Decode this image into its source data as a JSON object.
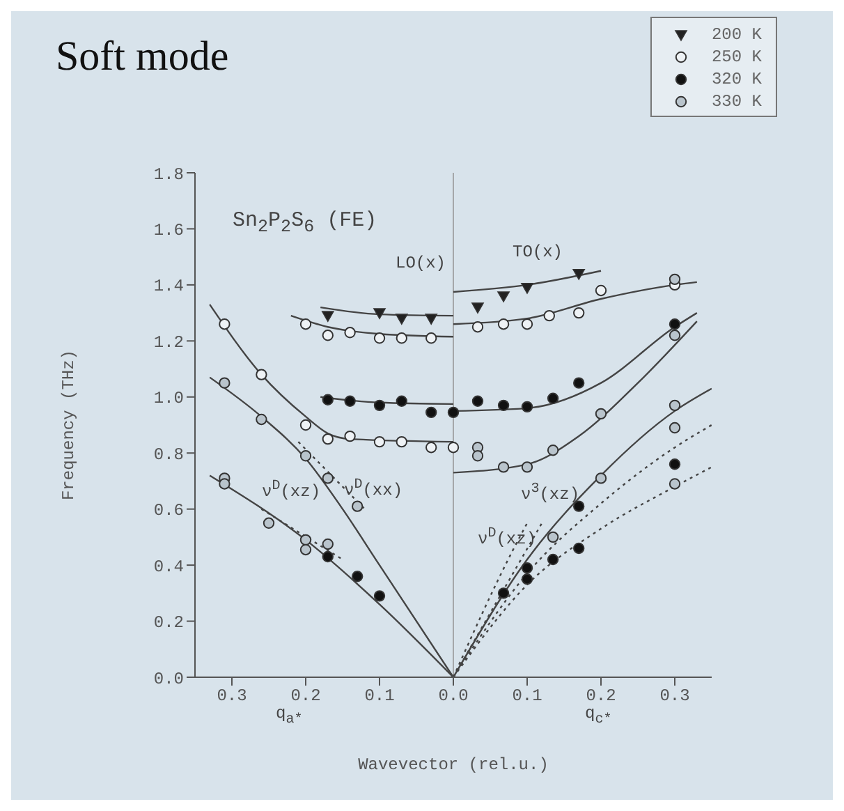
{
  "chart_data": {
    "type": "scatter",
    "title": "Soft mode",
    "xlabel": "Wavevector (rel.u.)",
    "ylabel": "Frequency (THz)",
    "xlim": [
      -0.35,
      0.35
    ],
    "xticks": [
      {
        "value": -0.3,
        "label": "0.3"
      },
      {
        "value": -0.2,
        "label": "0.2"
      },
      {
        "value": -0.1,
        "label": "0.1"
      },
      {
        "value": 0,
        "label": "0.0"
      },
      0.1,
      0.2,
      0.3
    ],
    "ylim": [
      0,
      1.8
    ],
    "yticks": [
      {
        "value": 0,
        "label": "0.0"
      },
      0.2,
      0.4,
      0.6,
      0.8,
      {
        "value": 1,
        "label": "1.0"
      },
      1.2,
      1.4,
      1.6,
      1.8
    ],
    "legend": "top right",
    "ref_lines": [
      {
        "axis": "x",
        "value": 0,
        "label": null,
        "color": "#999999"
      }
    ],
    "annotations": [
      "Sn$_{2}$P$_{2}$S$_{6}$ (FE)",
      "LO(x)",
      "TO(x)",
      "ν$^{D}$(xx)",
      "ν$^{D}$(xz)",
      "ν$^{3}$(xz)",
      "ν$^{D}$(xz)",
      "q$_{a*}$",
      "q$_{c*}$"
    ],
    "series": [
      {
        "name": "200 K",
        "marker": "triangle",
        "color": "#222222",
        "x": [
          -0.17,
          -0.1,
          -0.07,
          -0.03,
          0.033,
          0.068,
          0.1,
          0.17
        ],
        "values": [
          1.29,
          1.3,
          1.28,
          1.28,
          1.32,
          1.36,
          1.39,
          1.44
        ]
      },
      {
        "name": "250 K",
        "marker": "circle",
        "color": "#eef2f5",
        "x": [
          -0.2,
          -0.17,
          -0.14,
          -0.1,
          -0.07,
          -0.03,
          0.033,
          0.068,
          0.1,
          0.13,
          0.17,
          0.2,
          0.3,
          -0.31,
          -0.26,
          -0.2,
          -0.17,
          -0.14,
          -0.1,
          -0.07,
          -0.03,
          0
        ],
        "values": [
          1.26,
          1.22,
          1.23,
          1.21,
          1.21,
          1.21,
          1.25,
          1.26,
          1.26,
          1.29,
          1.3,
          1.38,
          1.4,
          1.26,
          1.08,
          0.9,
          0.85,
          0.86,
          0.84,
          0.84,
          0.82,
          0.82
        ]
      },
      {
        "name": "320 K",
        "marker": "circle",
        "color": "#111111",
        "x": [
          -0.17,
          -0.14,
          -0.1,
          -0.07,
          -0.03,
          0,
          0.033,
          0.068,
          0.1,
          0.135,
          0.17,
          0.3,
          -0.17,
          -0.13,
          -0.1,
          0.068,
          0.1,
          0.1,
          0.135,
          0.17,
          0.17,
          0.3
        ],
        "values": [
          0.99,
          0.985,
          0.97,
          0.985,
          0.945,
          0.945,
          0.985,
          0.97,
          0.965,
          0.995,
          1.05,
          1.26,
          0.43,
          0.36,
          0.29,
          0.3,
          0.35,
          0.39,
          0.42,
          0.46,
          0.61,
          0.76
        ]
      },
      {
        "name": "330 K",
        "marker": "circle",
        "color": "#b9c4cc",
        "x": [
          -0.31,
          -0.26,
          -0.2,
          -0.17,
          -0.13,
          -0.31,
          -0.31,
          -0.25,
          -0.2,
          -0.2,
          -0.17,
          0.033,
          0.033,
          0.068,
          0.1,
          0.135,
          0.2,
          0.3,
          0.3,
          0.3,
          0.3,
          0.3,
          0.2,
          0.135
        ],
        "values": [
          1.05,
          0.92,
          0.79,
          0.71,
          0.61,
          0.71,
          0.69,
          0.55,
          0.49,
          0.455,
          0.475,
          0.82,
          0.79,
          0.75,
          0.75,
          0.81,
          0.94,
          1.22,
          1.42,
          0.97,
          0.89,
          0.69,
          0.71,
          0.5
        ]
      },
      {
        "type": "line",
        "line_style": "solid",
        "color": "#444444",
        "x": [
          -0.18,
          -0.1,
          0
        ],
        "values": [
          1.32,
          1.295,
          1.29
        ]
      },
      {
        "type": "line",
        "line_style": "solid",
        "color": "#444444",
        "x": [
          -0.22,
          -0.17,
          -0.1,
          0
        ],
        "values": [
          1.29,
          1.25,
          1.225,
          1.215
        ]
      },
      {
        "type": "line",
        "line_style": "solid",
        "color": "#444444",
        "x": [
          -0.18,
          -0.1,
          0
        ],
        "values": [
          1.0,
          0.98,
          0.975
        ]
      },
      {
        "type": "line",
        "line_style": "solid",
        "color": "#444444",
        "x": [
          -0.33,
          -0.26,
          -0.2,
          -0.17,
          -0.14,
          0
        ],
        "values": [
          1.33,
          1.08,
          0.93,
          0.87,
          0.85,
          0.84
        ]
      },
      {
        "type": "line",
        "line_style": "solid",
        "color": "#444444",
        "x": [
          -0.33,
          -0.26,
          -0.2,
          -0.15,
          -0.1,
          0
        ],
        "values": [
          1.07,
          0.93,
          0.78,
          0.6,
          0.4,
          0
        ]
      },
      {
        "type": "line",
        "line_style": "solid",
        "color": "#444444",
        "x": [
          -0.33,
          -0.2,
          -0.1,
          0
        ],
        "values": [
          0.72,
          0.49,
          0.26,
          0
        ]
      },
      {
        "type": "line",
        "line_style": "dotted",
        "color": "#444444",
        "x": [
          -0.21,
          -0.12
        ],
        "values": [
          0.84,
          0.6
        ]
      },
      {
        "type": "line",
        "line_style": "dotted",
        "color": "#444444",
        "x": [
          -0.26,
          -0.15
        ],
        "values": [
          0.6,
          0.42
        ]
      },
      {
        "type": "line",
        "line_style": "solid",
        "color": "#444444",
        "x": [
          0,
          0.1,
          0.2
        ],
        "values": [
          1.375,
          1.4,
          1.45
        ]
      },
      {
        "type": "line",
        "line_style": "solid",
        "color": "#444444",
        "x": [
          0,
          0.1,
          0.2,
          0.3,
          0.33
        ],
        "values": [
          1.26,
          1.28,
          1.35,
          1.4,
          1.41
        ]
      },
      {
        "type": "line",
        "line_style": "solid",
        "color": "#444444",
        "x": [
          0,
          0.1,
          0.2,
          0.3,
          0.33
        ],
        "values": [
          0.95,
          0.96,
          1.05,
          1.25,
          1.3
        ]
      },
      {
        "type": "line",
        "line_style": "solid",
        "color": "#444444",
        "x": [
          0,
          0.1,
          0.17,
          0.25,
          0.33
        ],
        "values": [
          0.73,
          0.76,
          0.86,
          1.05,
          1.27
        ]
      },
      {
        "type": "line",
        "line_style": "solid",
        "color": "#444444",
        "x": [
          0,
          0.1,
          0.2,
          0.3,
          0.35
        ],
        "values": [
          0,
          0.42,
          0.72,
          0.95,
          1.03
        ]
      },
      {
        "type": "line",
        "line_style": "dotted",
        "color": "#444444",
        "x": [
          0,
          0.1,
          0.2,
          0.3,
          0.35
        ],
        "values": [
          0,
          0.37,
          0.62,
          0.82,
          0.9
        ]
      },
      {
        "type": "line",
        "line_style": "dotted",
        "color": "#444444",
        "x": [
          0,
          0.1,
          0.2,
          0.3,
          0.35
        ],
        "values": [
          0,
          0.33,
          0.53,
          0.68,
          0.75
        ]
      },
      {
        "type": "line",
        "line_style": "dotted",
        "color": "#444444",
        "x": [
          0,
          0.08,
          0.1
        ],
        "values": [
          0,
          0.45,
          0.55
        ]
      },
      {
        "type": "line",
        "line_style": "dotted",
        "color": "#444444",
        "x": [
          0,
          0.12
        ],
        "values": [
          0,
          0.55
        ]
      }
    ]
  }
}
